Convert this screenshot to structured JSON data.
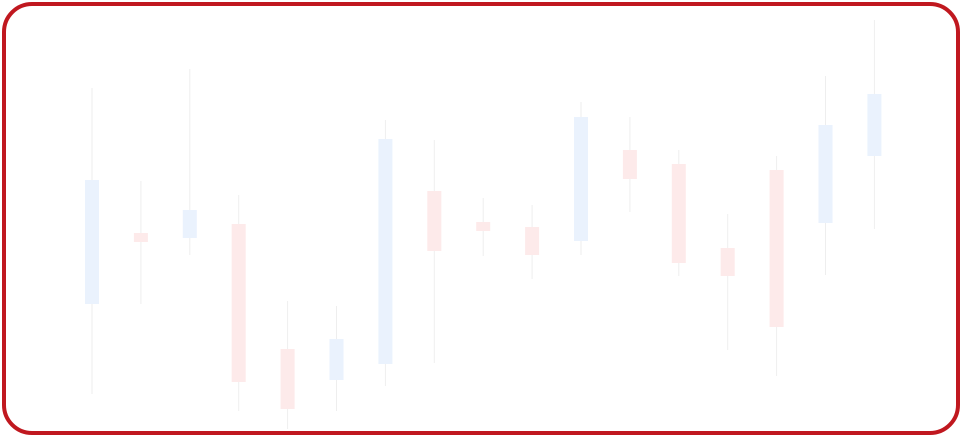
{
  "colors": {
    "frame_border": "#c0181f",
    "up_fill": "#eaf2fd",
    "down_fill": "#fdeaea",
    "wick": "#eeeeee",
    "background": "#ffffff"
  },
  "chart_data": {
    "type": "candlestick",
    "title": "",
    "xlabel": "",
    "ylabel": "",
    "grid": false,
    "legend": "none",
    "ylim": [
      0,
      415
    ],
    "candles": [
      {
        "index": 0,
        "open": 131,
        "close": 255,
        "high": 347,
        "low": 41,
        "direction": "up"
      },
      {
        "index": 1,
        "open": 202,
        "close": 193,
        "high": 254,
        "low": 131,
        "direction": "down"
      },
      {
        "index": 2,
        "open": 197,
        "close": 225,
        "high": 366,
        "low": 180,
        "direction": "up"
      },
      {
        "index": 3,
        "open": 211,
        "close": 53,
        "high": 240,
        "low": 24,
        "direction": "down"
      },
      {
        "index": 4,
        "open": 86,
        "close": 26,
        "high": 134,
        "low": 6,
        "direction": "down"
      },
      {
        "index": 5,
        "open": 55,
        "close": 96,
        "high": 129,
        "low": 24,
        "direction": "up"
      },
      {
        "index": 6,
        "open": 71,
        "close": 296,
        "high": 315,
        "low": 49,
        "direction": "up"
      },
      {
        "index": 7,
        "open": 244,
        "close": 184,
        "high": 295,
        "low": 72,
        "direction": "down"
      },
      {
        "index": 8,
        "open": 213,
        "close": 204,
        "high": 237,
        "low": 179,
        "direction": "down"
      },
      {
        "index": 9,
        "open": 208,
        "close": 180,
        "high": 230,
        "low": 156,
        "direction": "down"
      },
      {
        "index": 10,
        "open": 194,
        "close": 318,
        "high": 333,
        "low": 180,
        "direction": "up"
      },
      {
        "index": 11,
        "open": 285,
        "close": 256,
        "high": 318,
        "low": 223,
        "direction": "down"
      },
      {
        "index": 12,
        "open": 271,
        "close": 172,
        "high": 285,
        "low": 159,
        "direction": "down"
      },
      {
        "index": 13,
        "open": 187,
        "close": 159,
        "high": 221,
        "low": 85,
        "direction": "down"
      },
      {
        "index": 14,
        "open": 265,
        "close": 108,
        "high": 279,
        "low": 59,
        "direction": "down"
      },
      {
        "index": 15,
        "open": 212,
        "close": 310,
        "high": 359,
        "low": 160,
        "direction": "up"
      },
      {
        "index": 16,
        "open": 279,
        "close": 341,
        "high": 415,
        "low": 206,
        "direction": "up"
      }
    ]
  }
}
